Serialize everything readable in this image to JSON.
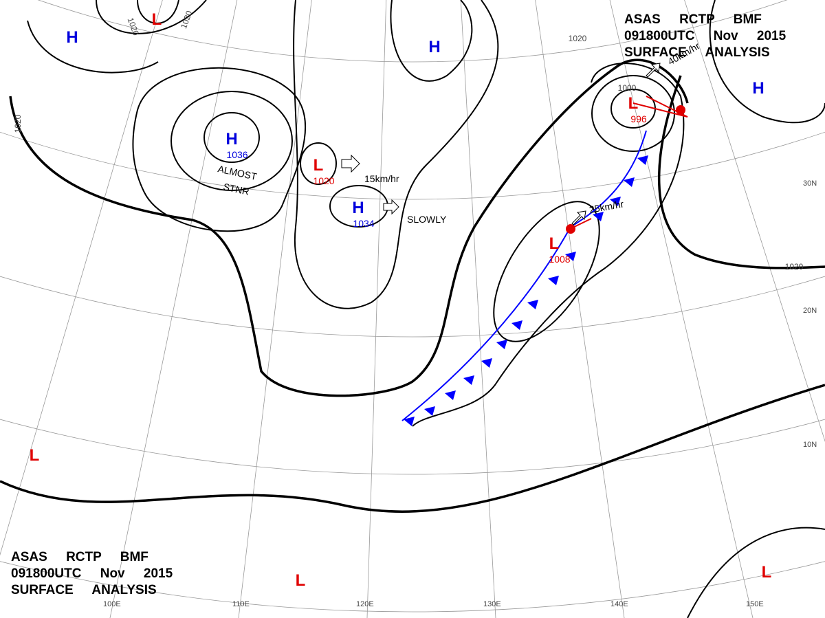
{
  "header_top": {
    "lines": [
      "ASAS RCTP BMF",
      "091800UTC Nov 2015",
      "SURFACE ANALYSIS"
    ]
  },
  "header_bottom": {
    "lines": [
      "ASAS RCTP BMF",
      "091800UTC Nov 2015",
      "SURFACE ANALYSIS"
    ]
  },
  "centers": [
    {
      "symbol": "H"
    },
    {
      "symbol": "L"
    },
    {
      "symbol": "H",
      "pressure": "1036"
    },
    {
      "symbol": "L",
      "pressure": "1020"
    },
    {
      "symbol": "H",
      "pressure": "1034"
    },
    {
      "symbol": "H"
    },
    {
      "symbol": "L",
      "pressure": "996"
    },
    {
      "symbol": "H"
    },
    {
      "symbol": "L",
      "pressure": "1008"
    },
    {
      "symbol": "L"
    },
    {
      "symbol": "L"
    },
    {
      "symbol": "L"
    }
  ],
  "isobar_labels": [
    "1020",
    "1020",
    "1020",
    "1020",
    "1000",
    "1020"
  ],
  "annotations": [
    "15km/hr",
    "SLOWLY",
    "25km/hr",
    "40km/hr",
    "ALMOST",
    "STNR"
  ],
  "lat_labels": [
    "30N",
    "20N",
    "10N"
  ],
  "lon_labels": [
    "100E",
    "110E",
    "120E",
    "130E",
    "140E",
    "150E"
  ]
}
